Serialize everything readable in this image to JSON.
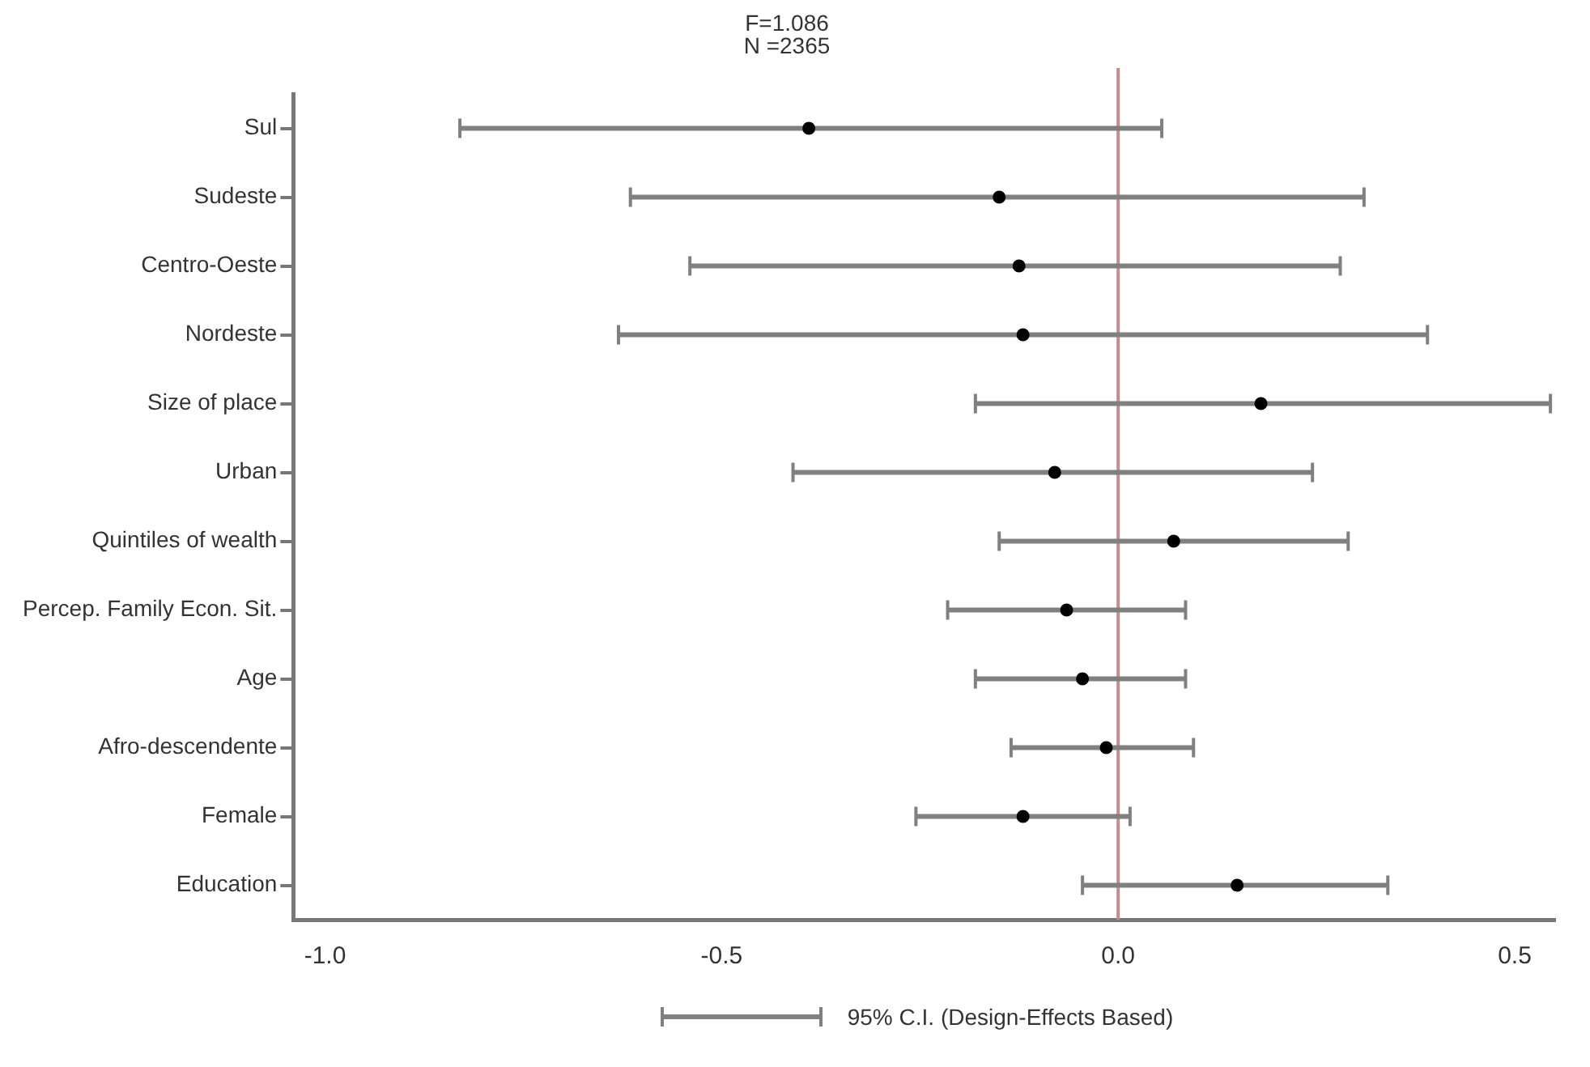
{
  "chart_data": {
    "type": "scatter",
    "orientation": "horizontal",
    "title": "F=1.086",
    "subtitle": "N =2365",
    "categories": [
      "Sul",
      "Sudeste",
      "Centro-Oeste",
      "Nordeste",
      "Size of place",
      "Urban",
      "Quintiles of wealth",
      "Percep. Family Econ. Sit.",
      "Age",
      "Afro-descendente",
      "Female",
      "Education"
    ],
    "series": [
      {
        "name": "95% C.I. (Design-Effects Based)",
        "color": "#000000",
        "values": [
          -0.39,
          -0.15,
          -0.125,
          -0.12,
          0.18,
          -0.08,
          0.07,
          -0.065,
          -0.045,
          -0.015,
          -0.12,
          0.15
        ],
        "errors": [
          [
            -0.83,
            0.055
          ],
          [
            -0.615,
            0.31
          ],
          [
            -0.54,
            0.28
          ],
          [
            -0.63,
            0.39
          ],
          [
            -0.18,
            0.545
          ],
          [
            -0.41,
            0.245
          ],
          [
            -0.15,
            0.29
          ],
          [
            -0.215,
            0.085
          ],
          [
            -0.18,
            0.085
          ],
          [
            -0.135,
            0.095
          ],
          [
            -0.255,
            0.015
          ],
          [
            -0.045,
            0.34
          ]
        ]
      }
    ],
    "xlim": [
      -1.04,
      0.55
    ],
    "xticks": [
      {
        "value": -1,
        "label": "-1.0"
      },
      {
        "value": -0.5,
        "label": "-0.5"
      },
      {
        "value": 0,
        "label": "0.0"
      },
      0.5
    ],
    "ref_lines": [
      {
        "axis": "x",
        "value": 0,
        "color": "#c98a8a"
      }
    ],
    "marker": "circle",
    "grid": false,
    "legend": "bottom"
  }
}
